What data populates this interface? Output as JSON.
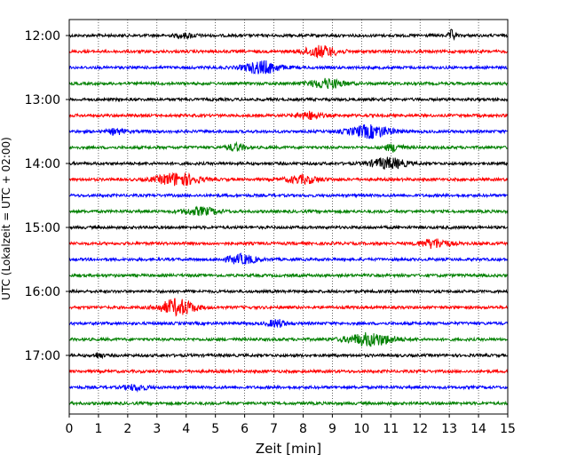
{
  "chart_data": {
    "type": "line",
    "title": "",
    "xlabel": "Zeit  [min]",
    "ylabel": "UTC (Lokalzeit = UTC + 02:00)",
    "xlim": [
      0,
      15
    ],
    "x_ticks": [
      "0",
      "1",
      "2",
      "3",
      "4",
      "5",
      "6",
      "7",
      "8",
      "9",
      "10",
      "11",
      "12",
      "13",
      "14",
      "15"
    ],
    "y_ticks": [
      "12:00",
      "13:00",
      "14:00",
      "15:00",
      "16:00",
      "17:00"
    ],
    "grid": "vertical-dotted",
    "colors": [
      "#000000",
      "#ff0000",
      "#0000ff",
      "#008000"
    ],
    "rows": [
      {
        "time": "12:00",
        "color": "#000000",
        "events": [
          {
            "x": 13.1,
            "amp": 6,
            "w": 0.12
          },
          {
            "x": 4.0,
            "amp": 2,
            "w": 0.4
          }
        ]
      },
      {
        "time": "12:15",
        "color": "#ff0000",
        "events": [
          {
            "x": 8.6,
            "amp": 6,
            "w": 0.6
          }
        ]
      },
      {
        "time": "12:30",
        "color": "#0000ff",
        "events": [
          {
            "x": 6.6,
            "amp": 7,
            "w": 0.6
          }
        ]
      },
      {
        "time": "12:45",
        "color": "#008000",
        "events": [
          {
            "x": 8.8,
            "amp": 5,
            "w": 0.6
          }
        ]
      },
      {
        "time": "13:00",
        "color": "#000000",
        "events": []
      },
      {
        "time": "13:15",
        "color": "#ff0000",
        "events": [
          {
            "x": 8.2,
            "amp": 4,
            "w": 0.4
          }
        ]
      },
      {
        "time": "13:30",
        "color": "#0000ff",
        "events": [
          {
            "x": 10.3,
            "amp": 7,
            "w": 0.7
          },
          {
            "x": 1.6,
            "amp": 3,
            "w": 0.3
          }
        ]
      },
      {
        "time": "13:45",
        "color": "#008000",
        "events": [
          {
            "x": 5.7,
            "amp": 4,
            "w": 0.3
          },
          {
            "x": 11.1,
            "amp": 4,
            "w": 0.3
          }
        ]
      },
      {
        "time": "14:00",
        "color": "#000000",
        "events": [
          {
            "x": 10.9,
            "amp": 6,
            "w": 0.6
          }
        ]
      },
      {
        "time": "14:15",
        "color": "#ff0000",
        "events": [
          {
            "x": 3.7,
            "amp": 7,
            "w": 0.7
          },
          {
            "x": 8.0,
            "amp": 4,
            "w": 0.6
          }
        ]
      },
      {
        "time": "14:30",
        "color": "#0000ff",
        "events": []
      },
      {
        "time": "14:45",
        "color": "#008000",
        "events": [
          {
            "x": 4.5,
            "amp": 4,
            "w": 0.6
          }
        ]
      },
      {
        "time": "15:00",
        "color": "#000000",
        "events": []
      },
      {
        "time": "15:15",
        "color": "#ff0000",
        "events": [
          {
            "x": 12.5,
            "amp": 5,
            "w": 0.5
          }
        ]
      },
      {
        "time": "15:30",
        "color": "#0000ff",
        "events": [
          {
            "x": 5.9,
            "amp": 5,
            "w": 0.5
          }
        ]
      },
      {
        "time": "15:45",
        "color": "#008000",
        "events": []
      },
      {
        "time": "16:00",
        "color": "#000000",
        "events": []
      },
      {
        "time": "16:15",
        "color": "#ff0000",
        "events": [
          {
            "x": 3.7,
            "amp": 9,
            "w": 0.6
          }
        ]
      },
      {
        "time": "16:30",
        "color": "#0000ff",
        "events": [
          {
            "x": 7.1,
            "amp": 4,
            "w": 0.3
          }
        ]
      },
      {
        "time": "16:45",
        "color": "#008000",
        "events": [
          {
            "x": 10.3,
            "amp": 7,
            "w": 0.8
          }
        ]
      },
      {
        "time": "17:00",
        "color": "#000000",
        "events": [
          {
            "x": 1.0,
            "amp": 3,
            "w": 0.15
          }
        ]
      },
      {
        "time": "17:15",
        "color": "#ff0000",
        "events": []
      },
      {
        "time": "17:30",
        "color": "#0000ff",
        "events": [
          {
            "x": 2.3,
            "amp": 3,
            "w": 0.4
          }
        ]
      },
      {
        "time": "17:45",
        "color": "#008000",
        "events": []
      }
    ]
  }
}
